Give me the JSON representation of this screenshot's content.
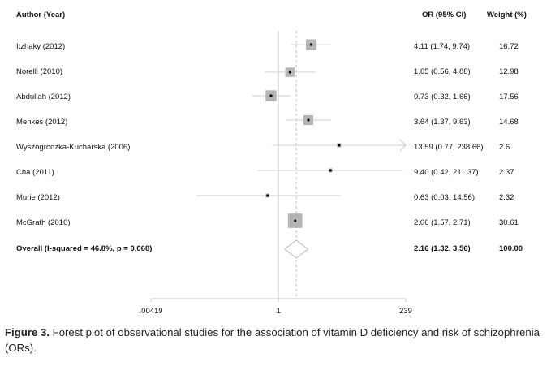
{
  "chart_data": {
    "type": "forest",
    "headers": {
      "study": "Author (Year)",
      "or": "OR (95% CI)",
      "weight": "Weight (%)"
    },
    "studies": [
      {
        "label": "Itzhaky (2012)",
        "or": 4.11,
        "lo": 1.74,
        "hi": 9.74,
        "or_text": "4.11 (1.74, 9.74)",
        "weight": 16.72,
        "weight_text": "16.72"
      },
      {
        "label": "Norelli (2010)",
        "or": 1.65,
        "lo": 0.56,
        "hi": 4.88,
        "or_text": "1.65 (0.56, 4.88)",
        "weight": 12.98,
        "weight_text": "12.98"
      },
      {
        "label": "Abdullah (2012)",
        "or": 0.73,
        "lo": 0.32,
        "hi": 1.66,
        "or_text": "0.73 (0.32, 1.66)",
        "weight": 17.56,
        "weight_text": "17.56"
      },
      {
        "label": "Menkes (2012)",
        "or": 3.64,
        "lo": 1.37,
        "hi": 9.63,
        "or_text": "3.64 (1.37, 9.63)",
        "weight": 14.68,
        "weight_text": "14.68"
      },
      {
        "label": "Wyszogrodzka-Kucharska (2006)",
        "or": 13.59,
        "lo": 0.77,
        "hi": 238.66,
        "or_text": "13.59 (0.77, 238.66)",
        "weight": 2.6,
        "weight_text": "2.6",
        "arrow_right": true
      },
      {
        "label": "Cha (2011)",
        "or": 9.4,
        "lo": 0.42,
        "hi": 211.37,
        "or_text": "9.40 (0.42, 211.37)",
        "weight": 2.37,
        "weight_text": "2.37"
      },
      {
        "label": "Murie (2012)",
        "or": 0.63,
        "lo": 0.03,
        "hi": 14.56,
        "or_text": "0.63 (0.03, 14.56)",
        "weight": 2.32,
        "weight_text": "2.32"
      },
      {
        "label": "McGrath (2010)",
        "or": 2.06,
        "lo": 1.57,
        "hi": 2.71,
        "or_text": "2.06 (1.57, 2.71)",
        "weight": 30.61,
        "weight_text": "30.61"
      }
    ],
    "overall": {
      "label": "Overall  (I-squared = 46.8%, p = 0.068)",
      "or": 2.16,
      "lo": 1.32,
      "hi": 3.56,
      "or_text": "2.16 (1.32, 3.56)",
      "weight_text": "100.00"
    },
    "x_scale": "log",
    "x_ticks": [
      {
        "value": 0.00419,
        "label": ".00419"
      },
      {
        "value": 1,
        "label": "1"
      },
      {
        "value": 239,
        "label": "239"
      }
    ],
    "null_line": 1
  },
  "caption": {
    "bold": "Figure 3.",
    "text": "  Forest plot of observational studies for the association of vitamin D deficiency and risk of schizophrenia (ORs)."
  },
  "colors": {
    "box": "#b5b5b5",
    "line": "#cfcfcf",
    "diamond": "#bbbbbb",
    "axis": "#c8c8c8",
    "dash": "#bbbbbb",
    "point": "#000000"
  }
}
